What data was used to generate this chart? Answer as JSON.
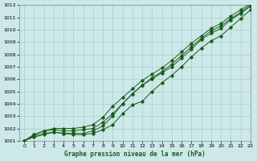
{
  "title": "Graphe pression niveau de la mer (hPa)",
  "bg_color": "#cce8e8",
  "grid_color": "#aacccc",
  "line_color": "#1a5c1a",
  "xlim": [
    -0.5,
    23
  ],
  "ylim": [
    1001,
    1012
  ],
  "xticks": [
    0,
    1,
    2,
    3,
    4,
    5,
    6,
    7,
    8,
    9,
    10,
    11,
    12,
    13,
    14,
    15,
    16,
    17,
    18,
    19,
    20,
    21,
    22,
    23
  ],
  "yticks": [
    1001,
    1002,
    1003,
    1004,
    1005,
    1006,
    1007,
    1008,
    1009,
    1010,
    1011,
    1012
  ],
  "line1_x": [
    0,
    1,
    2,
    3,
    4,
    5,
    6,
    7,
    8,
    9,
    10,
    11,
    12,
    13,
    14,
    15,
    16,
    17,
    18,
    19,
    20,
    21,
    22,
    23
  ],
  "line1_y": [
    1001.0,
    1001.5,
    1001.8,
    1001.9,
    1001.8,
    1001.8,
    1001.9,
    1002.0,
    1002.5,
    1003.2,
    1004.0,
    1004.8,
    1005.5,
    1006.1,
    1006.6,
    1007.2,
    1007.9,
    1008.6,
    1009.3,
    1009.9,
    1010.3,
    1010.9,
    1011.4,
    1012.0
  ],
  "line2_x": [
    0,
    1,
    2,
    3,
    4,
    5,
    6,
    7,
    8,
    9,
    10,
    11,
    12,
    13,
    14,
    15,
    16,
    17,
    18,
    19,
    20,
    21,
    22,
    23
  ],
  "line2_y": [
    1001.0,
    1001.5,
    1001.8,
    1002.0,
    1002.0,
    1002.0,
    1002.1,
    1002.3,
    1002.9,
    1003.8,
    1004.5,
    1005.2,
    1005.9,
    1006.4,
    1006.9,
    1007.5,
    1008.2,
    1008.9,
    1009.5,
    1010.1,
    1010.5,
    1011.1,
    1011.6,
    1012.1
  ],
  "line3_x": [
    0,
    1,
    2,
    3,
    4,
    5,
    6,
    7,
    8,
    9,
    10,
    11,
    12,
    13,
    14,
    15,
    16,
    17,
    18,
    19,
    20,
    21,
    22,
    23
  ],
  "line3_y": [
    1001.0,
    1001.4,
    1001.6,
    1001.7,
    1001.6,
    1001.6,
    1001.6,
    1001.8,
    1002.2,
    1003.0,
    1004.0,
    1004.8,
    1005.5,
    1006.0,
    1006.5,
    1007.0,
    1007.7,
    1008.4,
    1009.2,
    1009.7,
    1010.1,
    1010.8,
    1011.3,
    1011.9
  ],
  "line4_x": [
    0,
    1,
    2,
    3,
    4,
    5,
    6,
    7,
    8,
    9,
    10,
    11,
    12,
    13,
    14,
    15,
    16,
    17,
    18,
    19,
    20,
    21,
    22,
    23
  ],
  "line4_y": [
    1001.0,
    1001.3,
    1001.5,
    1001.7,
    1001.6,
    1001.5,
    1001.5,
    1001.6,
    1001.9,
    1002.3,
    1003.2,
    1003.9,
    1004.2,
    1005.0,
    1005.7,
    1006.3,
    1007.0,
    1007.8,
    1008.5,
    1009.1,
    1009.5,
    1010.2,
    1010.9,
    1011.6
  ]
}
